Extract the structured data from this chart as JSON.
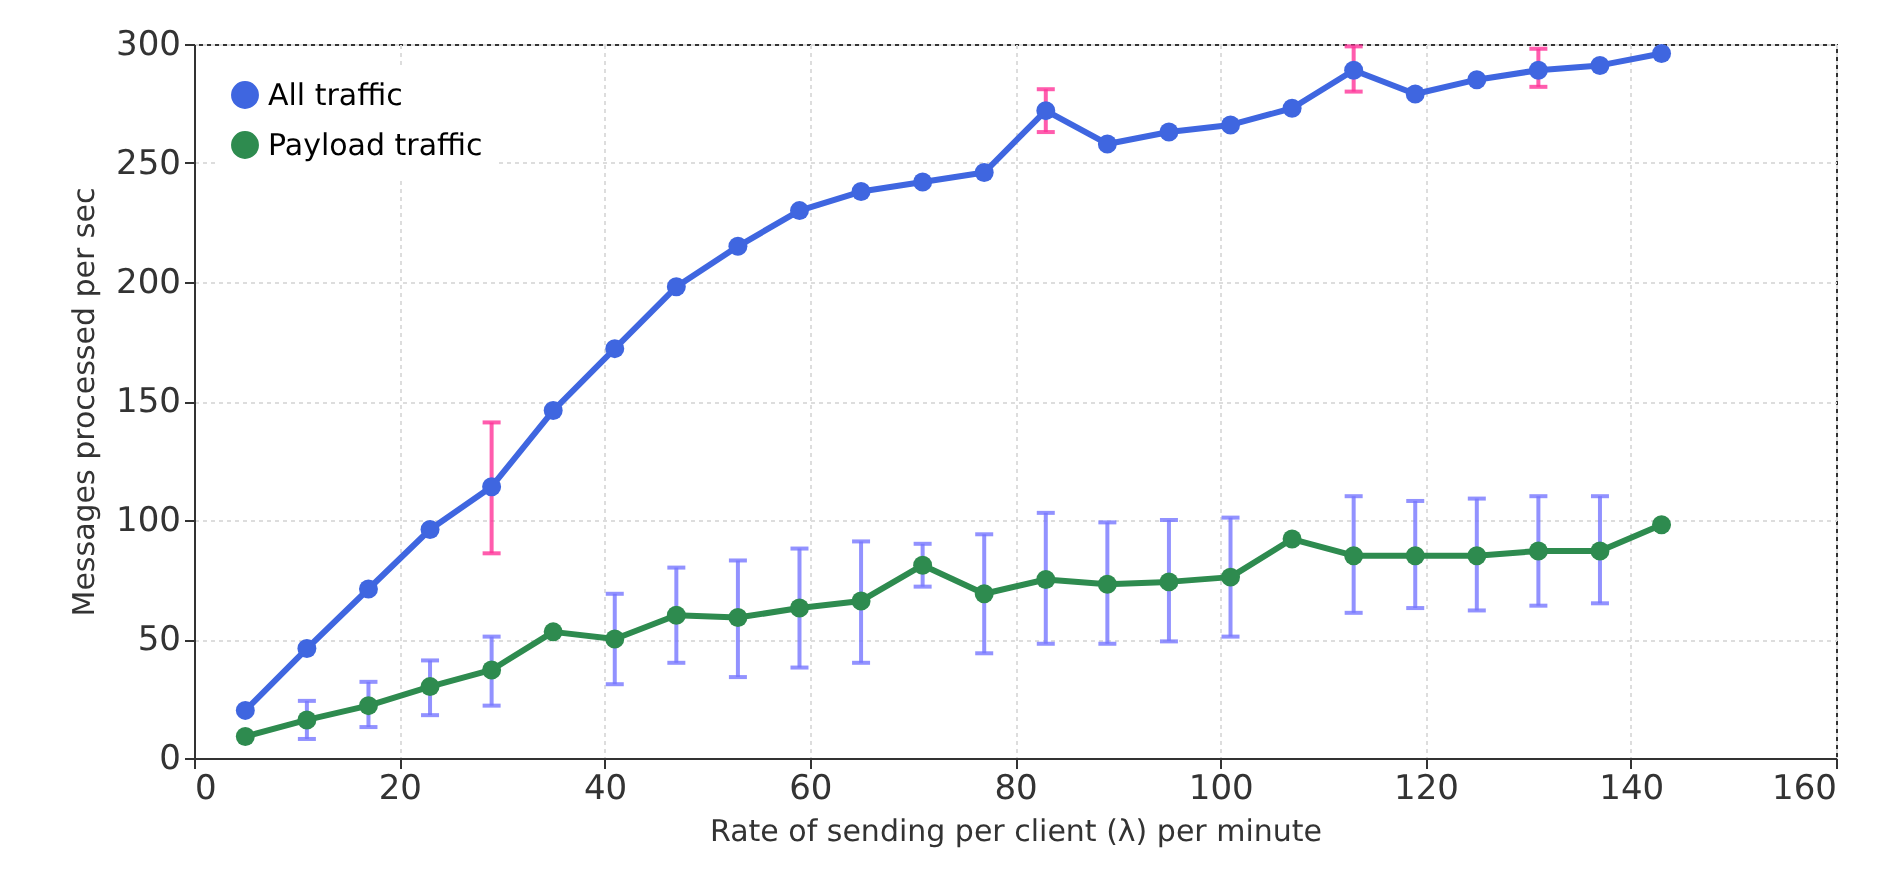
{
  "chart_data": {
    "type": "line",
    "xlabel": "Rate of sending per client (λ) per minute",
    "ylabel": "Messages processed per sec",
    "x": [
      5,
      11,
      17,
      23,
      29,
      35,
      41,
      47,
      53,
      59,
      65,
      71,
      77,
      83,
      89,
      95,
      101,
      107,
      113,
      119,
      125,
      131,
      137,
      143
    ],
    "series": [
      {
        "name": "All traffic",
        "color": "#3f66e0",
        "values": [
          20,
          46,
          71,
          96,
          114,
          146,
          172,
          198,
          215,
          230,
          238,
          242,
          246,
          272,
          258,
          263,
          266,
          273,
          289,
          279,
          285,
          289,
          291,
          296
        ],
        "errors": [
          null,
          null,
          null,
          null,
          [
            86,
            141
          ],
          null,
          null,
          null,
          null,
          null,
          null,
          null,
          null,
          [
            263,
            281
          ],
          null,
          null,
          null,
          null,
          [
            280,
            299
          ],
          null,
          null,
          [
            282,
            298
          ],
          null,
          null
        ]
      },
      {
        "name": "Payload traffic",
        "color": "#2e8b4f",
        "values": [
          9,
          16,
          22,
          30,
          37,
          53,
          50,
          60,
          59,
          63,
          66,
          81,
          69,
          75,
          73,
          74,
          76,
          92,
          85,
          85,
          85,
          87,
          87,
          98
        ],
        "errors": [
          null,
          [
            8,
            24
          ],
          [
            13,
            32
          ],
          [
            18,
            41
          ],
          [
            22,
            51
          ],
          null,
          [
            31,
            69
          ],
          [
            40,
            80
          ],
          [
            34,
            83
          ],
          [
            38,
            88
          ],
          [
            40,
            91
          ],
          [
            72,
            90
          ],
          [
            44,
            94
          ],
          [
            48,
            103
          ],
          [
            48,
            99
          ],
          [
            49,
            100
          ],
          [
            51,
            101
          ],
          null,
          [
            61,
            110
          ],
          [
            63,
            108
          ],
          [
            62,
            109
          ],
          [
            64,
            110
          ],
          [
            65,
            110
          ],
          null
        ]
      }
    ],
    "xlim": [
      0,
      160
    ],
    "xticks": [
      0,
      20,
      40,
      60,
      80,
      100,
      120,
      140,
      160
    ],
    "ylim": [
      0,
      300
    ],
    "yticks": [
      0,
      50,
      100,
      150,
      200,
      250,
      300
    ],
    "grid": true,
    "legend": "top left",
    "marker": "circle"
  }
}
